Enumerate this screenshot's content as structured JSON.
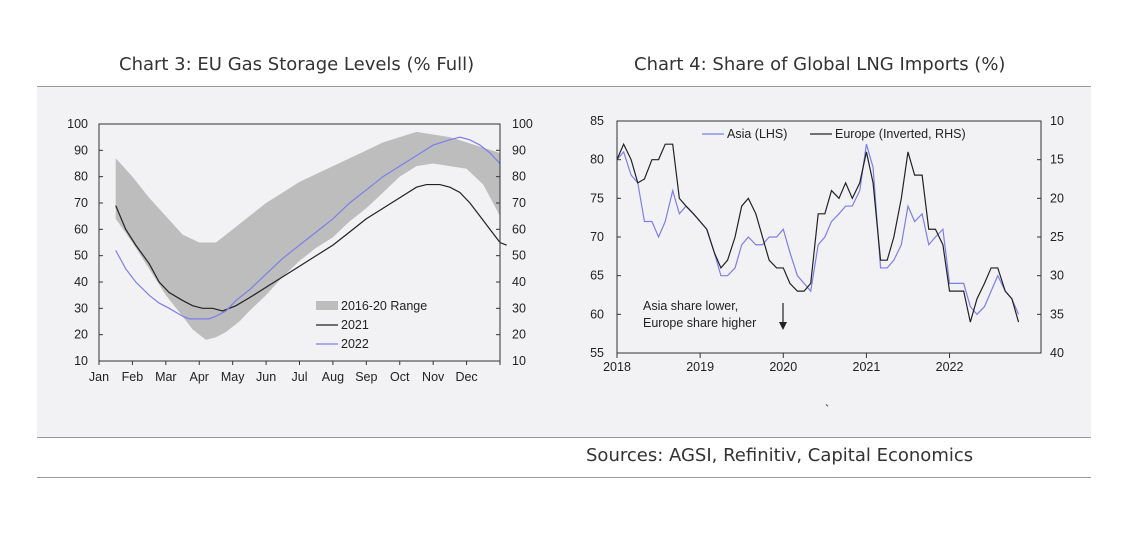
{
  "titles": {
    "chart3": "Chart 3: EU Gas Storage Levels (% Full)",
    "chart4": "Chart 4: Share of Global LNG Imports (%)"
  },
  "sources": "Sources: AGSI, Refinitiv, Capital Economics",
  "stray_mark": "`",
  "chart_data": [
    {
      "type": "line",
      "categories": [
        "Jan",
        "Feb",
        "Mar",
        "Apr",
        "May",
        "Jun",
        "Jul",
        "Aug",
        "Sep",
        "Oct",
        "Nov",
        "Dec"
      ],
      "ylim": [
        10,
        100
      ],
      "yticks": [
        10,
        20,
        30,
        40,
        50,
        60,
        70,
        80,
        90,
        100
      ],
      "legend": [
        "2016-20 Range",
        "2021",
        "2022"
      ],
      "range_band": {
        "name": "2016-20 Range",
        "color": "#bdbdbd",
        "upper": [
          [
            0,
            87
          ],
          [
            0.5,
            80
          ],
          [
            1,
            72
          ],
          [
            1.5,
            65
          ],
          [
            2,
            58
          ],
          [
            2.5,
            55
          ],
          [
            3,
            55
          ],
          [
            3.5,
            60
          ],
          [
            4,
            65
          ],
          [
            4.5,
            70
          ],
          [
            5,
            74
          ],
          [
            5.5,
            78
          ],
          [
            6,
            81
          ],
          [
            6.5,
            84
          ],
          [
            7,
            87
          ],
          [
            7.5,
            90
          ],
          [
            8,
            93
          ],
          [
            8.5,
            95
          ],
          [
            9,
            97
          ],
          [
            9.5,
            96
          ],
          [
            10,
            95
          ],
          [
            10.5,
            93
          ],
          [
            11,
            91
          ],
          [
            11.5,
            89
          ]
        ],
        "lower": [
          [
            0,
            64
          ],
          [
            0.5,
            55
          ],
          [
            1,
            45
          ],
          [
            1.5,
            35
          ],
          [
            2,
            27
          ],
          [
            2.3,
            22
          ],
          [
            2.7,
            18
          ],
          [
            3,
            19
          ],
          [
            3.3,
            21
          ],
          [
            3.7,
            25
          ],
          [
            4,
            29
          ],
          [
            4.5,
            35
          ],
          [
            5,
            42
          ],
          [
            5.5,
            48
          ],
          [
            6,
            53
          ],
          [
            6.5,
            57
          ],
          [
            7,
            63
          ],
          [
            7.5,
            68
          ],
          [
            8,
            74
          ],
          [
            8.5,
            80
          ],
          [
            9,
            84
          ],
          [
            9.5,
            85
          ],
          [
            10,
            84
          ],
          [
            10.5,
            83
          ],
          [
            11,
            77
          ],
          [
            11.5,
            65
          ]
        ]
      },
      "series": [
        {
          "name": "2021",
          "color": "#222222",
          "points": [
            [
              0,
              69
            ],
            [
              0.3,
              60
            ],
            [
              0.6,
              54
            ],
            [
              1,
              47
            ],
            [
              1.3,
              40
            ],
            [
              1.6,
              36
            ],
            [
              2,
              33
            ],
            [
              2.3,
              31
            ],
            [
              2.6,
              30
            ],
            [
              2.9,
              30
            ],
            [
              3.2,
              29
            ],
            [
              3.6,
              31
            ],
            [
              4,
              34
            ],
            [
              4.5,
              38
            ],
            [
              5,
              42
            ],
            [
              5.5,
              46
            ],
            [
              6,
              50
            ],
            [
              6.5,
              54
            ],
            [
              7,
              59
            ],
            [
              7.5,
              64
            ],
            [
              8,
              68
            ],
            [
              8.5,
              72
            ],
            [
              9,
              76
            ],
            [
              9.3,
              77
            ],
            [
              9.7,
              77
            ],
            [
              10,
              76
            ],
            [
              10.3,
              74
            ],
            [
              10.6,
              70
            ],
            [
              10.9,
              65
            ],
            [
              11.2,
              60
            ],
            [
              11.5,
              55
            ],
            [
              11.7,
              54
            ]
          ]
        },
        {
          "name": "2022",
          "color": "#7b7fe8",
          "points": [
            [
              0,
              52
            ],
            [
              0.3,
              45
            ],
            [
              0.6,
              40
            ],
            [
              1,
              35
            ],
            [
              1.3,
              32
            ],
            [
              1.6,
              30
            ],
            [
              2,
              27
            ],
            [
              2.2,
              26
            ],
            [
              2.5,
              26
            ],
            [
              2.8,
              26
            ],
            [
              3,
              27
            ],
            [
              3.3,
              29
            ],
            [
              3.6,
              33
            ],
            [
              4,
              37
            ],
            [
              4.5,
              43
            ],
            [
              5,
              49
            ],
            [
              5.5,
              54
            ],
            [
              6,
              59
            ],
            [
              6.5,
              64
            ],
            [
              7,
              70
            ],
            [
              7.5,
              75
            ],
            [
              8,
              80
            ],
            [
              8.5,
              84
            ],
            [
              9,
              88
            ],
            [
              9.5,
              92
            ],
            [
              10,
              94
            ],
            [
              10.3,
              95
            ],
            [
              10.6,
              94
            ],
            [
              10.9,
              92
            ],
            [
              11.2,
              89
            ],
            [
              11.5,
              85
            ]
          ]
        }
      ]
    },
    {
      "type": "line",
      "x_ticks": [
        "2018",
        "2019",
        "2020",
        "2021",
        "2022"
      ],
      "xlim": [
        2018,
        2023.1
      ],
      "left_axis": {
        "ylim": [
          55,
          85
        ],
        "ticks": [
          55,
          60,
          65,
          70,
          75,
          80,
          85
        ]
      },
      "right_axis": {
        "ylim": [
          10,
          40
        ],
        "inverted": true,
        "ticks": [
          10,
          15,
          20,
          25,
          30,
          35,
          40
        ]
      },
      "annotation": [
        "Asia share lower,",
        "Europe share higher"
      ],
      "series": [
        {
          "name": "Asia (LHS)",
          "color": "#7b7fe8",
          "axis": "left",
          "points": [
            [
              2018.0,
              80
            ],
            [
              2018.08,
              81
            ],
            [
              2018.17,
              78
            ],
            [
              2018.25,
              77
            ],
            [
              2018.33,
              72
            ],
            [
              2018.42,
              72
            ],
            [
              2018.5,
              70
            ],
            [
              2018.58,
              72
            ],
            [
              2018.67,
              76
            ],
            [
              2018.75,
              73
            ],
            [
              2018.83,
              74
            ],
            [
              2018.92,
              73
            ],
            [
              2019.0,
              72
            ],
            [
              2019.08,
              71
            ],
            [
              2019.17,
              68
            ],
            [
              2019.25,
              65
            ],
            [
              2019.33,
              65
            ],
            [
              2019.42,
              66
            ],
            [
              2019.5,
              69
            ],
            [
              2019.58,
              70
            ],
            [
              2019.67,
              69
            ],
            [
              2019.75,
              69
            ],
            [
              2019.83,
              70
            ],
            [
              2019.92,
              70
            ],
            [
              2020.0,
              71
            ],
            [
              2020.08,
              68
            ],
            [
              2020.17,
              65
            ],
            [
              2020.25,
              64
            ],
            [
              2020.33,
              63
            ],
            [
              2020.42,
              69
            ],
            [
              2020.5,
              70
            ],
            [
              2020.58,
              72
            ],
            [
              2020.67,
              73
            ],
            [
              2020.75,
              74
            ],
            [
              2020.83,
              74
            ],
            [
              2020.92,
              76
            ],
            [
              2021.0,
              82
            ],
            [
              2021.08,
              79
            ],
            [
              2021.17,
              66
            ],
            [
              2021.25,
              66
            ],
            [
              2021.33,
              67
            ],
            [
              2021.42,
              69
            ],
            [
              2021.5,
              74
            ],
            [
              2021.58,
              72
            ],
            [
              2021.67,
              73
            ],
            [
              2021.75,
              69
            ],
            [
              2021.83,
              70
            ],
            [
              2021.92,
              71
            ],
            [
              2022.0,
              64
            ],
            [
              2022.08,
              64
            ],
            [
              2022.17,
              64
            ],
            [
              2022.25,
              61
            ],
            [
              2022.33,
              60
            ],
            [
              2022.42,
              61
            ],
            [
              2022.5,
              63
            ],
            [
              2022.58,
              65
            ],
            [
              2022.67,
              63
            ],
            [
              2022.75,
              62
            ],
            [
              2022.83,
              60
            ]
          ]
        },
        {
          "name": "Europe (Inverted, RHS)",
          "color": "#222222",
          "axis": "right",
          "points": [
            [
              2018.0,
              15
            ],
            [
              2018.08,
              13
            ],
            [
              2018.17,
              15
            ],
            [
              2018.25,
              18
            ],
            [
              2018.33,
              17.5
            ],
            [
              2018.42,
              15
            ],
            [
              2018.5,
              15
            ],
            [
              2018.58,
              13
            ],
            [
              2018.67,
              13
            ],
            [
              2018.75,
              20
            ],
            [
              2018.83,
              21
            ],
            [
              2018.92,
              22
            ],
            [
              2019.0,
              23
            ],
            [
              2019.08,
              24
            ],
            [
              2019.17,
              27
            ],
            [
              2019.25,
              29
            ],
            [
              2019.33,
              28
            ],
            [
              2019.42,
              25
            ],
            [
              2019.5,
              21
            ],
            [
              2019.58,
              20
            ],
            [
              2019.67,
              22
            ],
            [
              2019.75,
              25
            ],
            [
              2019.83,
              28
            ],
            [
              2019.92,
              29
            ],
            [
              2020.0,
              29
            ],
            [
              2020.08,
              31
            ],
            [
              2020.17,
              32
            ],
            [
              2020.25,
              32
            ],
            [
              2020.33,
              31
            ],
            [
              2020.42,
              22
            ],
            [
              2020.5,
              22
            ],
            [
              2020.58,
              19
            ],
            [
              2020.67,
              20
            ],
            [
              2020.75,
              18
            ],
            [
              2020.83,
              20
            ],
            [
              2020.92,
              18
            ],
            [
              2021.0,
              14
            ],
            [
              2021.08,
              18
            ],
            [
              2021.17,
              28
            ],
            [
              2021.25,
              28
            ],
            [
              2021.33,
              25
            ],
            [
              2021.42,
              20
            ],
            [
              2021.5,
              14
            ],
            [
              2021.58,
              17
            ],
            [
              2021.67,
              17
            ],
            [
              2021.75,
              24
            ],
            [
              2021.83,
              24
            ],
            [
              2021.92,
              26
            ],
            [
              2022.0,
              32
            ],
            [
              2022.08,
              32
            ],
            [
              2022.17,
              32
            ],
            [
              2022.25,
              36
            ],
            [
              2022.33,
              33
            ],
            [
              2022.42,
              31
            ],
            [
              2022.5,
              29
            ],
            [
              2022.58,
              29
            ],
            [
              2022.67,
              32
            ],
            [
              2022.75,
              33
            ],
            [
              2022.83,
              36
            ]
          ]
        }
      ]
    }
  ]
}
